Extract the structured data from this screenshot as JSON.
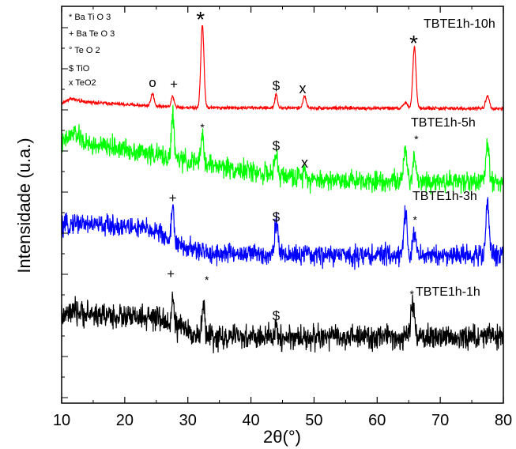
{
  "chart_data": {
    "type": "line",
    "xlabel": "2θ(°)",
    "ylabel": "Intensidade (u.a.)",
    "xlim": [
      10,
      80
    ],
    "xticks": [
      "10",
      "20",
      "30",
      "40",
      "50",
      "60",
      "70",
      "80"
    ],
    "grid": false,
    "legend": {
      "placement": "top-left",
      "entries": [
        "* Ba Ti O 3",
        "+ Ba Te O 3",
        "° Te O 2",
        "$ TiO",
        "x TeO2"
      ]
    },
    "series": [
      {
        "name": "TBTE1h-10h",
        "color": "#ff0000",
        "noise": 0.8,
        "profile": [
          [
            10,
            3.5
          ],
          [
            11.5,
            6
          ],
          [
            13,
            4.5
          ],
          [
            20,
            3
          ],
          [
            30,
            1.5
          ],
          [
            80,
            1
          ]
        ],
        "peaks": [
          {
            "x": 24.4,
            "h": 6,
            "w": 0.25
          },
          {
            "x": 27.6,
            "h": 5,
            "w": 0.25
          },
          {
            "x": 32.3,
            "h": 40,
            "w": 0.25
          },
          {
            "x": 44.0,
            "h": 7,
            "w": 0.2
          },
          {
            "x": 48.5,
            "h": 6,
            "w": 0.25
          },
          {
            "x": 64.5,
            "h": 3,
            "w": 0.3
          },
          {
            "x": 65.9,
            "h": 30,
            "w": 0.25
          },
          {
            "x": 77.5,
            "h": 6,
            "w": 0.3
          }
        ],
        "annotations": [
          {
            "text": "*",
            "x": 32.0,
            "size": 28
          },
          {
            "text": "o",
            "x": 24.4,
            "size": 17
          },
          {
            "text": "+",
            "x": 27.8,
            "size": 17
          },
          {
            "text": "$",
            "x": 44.0,
            "size": 17
          },
          {
            "text": "x",
            "x": 48.2,
            "size": 18
          },
          {
            "text": "*",
            "x": 65.8,
            "size": 28
          }
        ]
      },
      {
        "name": "TBTE1h-5h",
        "color": "#00ff00",
        "noise": 5,
        "profile": [
          [
            10,
            20
          ],
          [
            12,
            26
          ],
          [
            14,
            20
          ],
          [
            20,
            18
          ],
          [
            25,
            15
          ],
          [
            30,
            12
          ],
          [
            40,
            7
          ],
          [
            50,
            3
          ],
          [
            80,
            2
          ]
        ],
        "peaks": [
          {
            "x": 27.6,
            "h": 22,
            "w": 0.2
          },
          {
            "x": 32.3,
            "h": 15,
            "w": 0.2
          },
          {
            "x": 44.0,
            "h": 10,
            "w": 0.2
          },
          {
            "x": 48.5,
            "h": 5,
            "w": 0.25
          },
          {
            "x": 64.5,
            "h": 14,
            "w": 0.25
          },
          {
            "x": 65.9,
            "h": 12,
            "w": 0.25
          },
          {
            "x": 77.5,
            "h": 18,
            "w": 0.25
          }
        ],
        "annotations": [
          {
            "text": "*",
            "x": 32.3,
            "size": 14
          },
          {
            "text": "$",
            "x": 44.0,
            "size": 17
          },
          {
            "text": "x",
            "x": 48.5,
            "size": 18
          },
          {
            "text": "*",
            "x": 66.2,
            "size": 14
          }
        ]
      },
      {
        "name": "TBTE1h-3h",
        "color": "#0000ff",
        "noise": 5,
        "profile": [
          [
            10,
            15
          ],
          [
            12,
            18
          ],
          [
            15,
            17
          ],
          [
            20,
            16
          ],
          [
            25,
            14
          ],
          [
            28,
            7
          ],
          [
            33,
            3
          ],
          [
            50,
            2
          ],
          [
            80,
            2
          ]
        ],
        "peaks": [
          {
            "x": 27.6,
            "h": 20,
            "w": 0.2
          },
          {
            "x": 44.0,
            "h": 17,
            "w": 0.25
          },
          {
            "x": 64.5,
            "h": 22,
            "w": 0.25
          },
          {
            "x": 65.9,
            "h": 10,
            "w": 0.25
          },
          {
            "x": 77.5,
            "h": 26,
            "w": 0.25
          }
        ],
        "annotations": [
          {
            "text": "+",
            "x": 27.6,
            "size": 17
          },
          {
            "text": "$",
            "x": 44.0,
            "size": 17
          },
          {
            "text": "*",
            "x": 66.0,
            "size": 14
          }
        ]
      },
      {
        "name": "TBTE1h-1h",
        "color": "#000000",
        "noise": 6,
        "profile": [
          [
            10,
            12
          ],
          [
            12,
            14
          ],
          [
            20,
            12
          ],
          [
            25,
            11
          ],
          [
            28,
            8
          ],
          [
            30,
            5
          ],
          [
            33,
            2
          ],
          [
            80,
            2
          ]
        ],
        "peaks": [
          {
            "x": 27.6,
            "h": 12,
            "w": 0.2
          },
          {
            "x": 32.5,
            "h": 16,
            "w": 0.2
          },
          {
            "x": 44.0,
            "h": 5,
            "w": 0.2
          },
          {
            "x": 65.6,
            "h": 16,
            "w": 0.25
          },
          {
            "x": 77.5,
            "h": 3,
            "w": 0.3
          }
        ],
        "annotations": [
          {
            "text": "+",
            "x": 27.3,
            "size": 17
          },
          {
            "text": "*",
            "x": 33.0,
            "size": 14
          },
          {
            "text": "$",
            "x": 44.0,
            "size": 17
          },
          {
            "text": "*",
            "x": 65.5,
            "size": 14
          }
        ]
      }
    ]
  }
}
